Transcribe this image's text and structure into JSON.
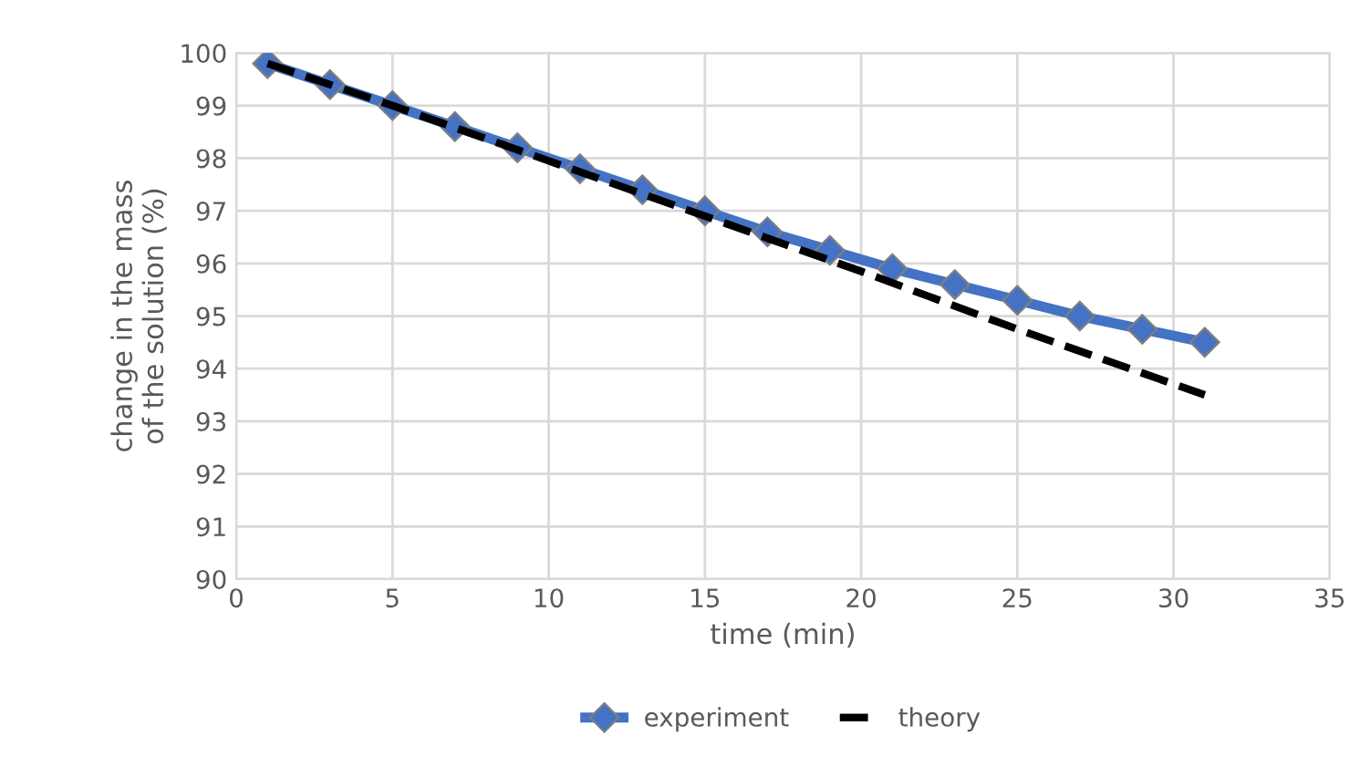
{
  "chart_data": {
    "type": "line",
    "xlabel": "time (min)",
    "ylabel": "change in the mass\nof the solution (%)",
    "xlim": [
      0,
      35
    ],
    "xticks": [
      0,
      5,
      10,
      15,
      20,
      25,
      30,
      35
    ],
    "ylim": [
      90,
      100
    ],
    "yticks": [
      90,
      91,
      92,
      93,
      94,
      95,
      96,
      97,
      98,
      99,
      100
    ],
    "grid": true,
    "legend": "bottom",
    "series": [
      {
        "name": "experiment",
        "color": "#4472c4",
        "marker": "diamond",
        "line_style": "solid",
        "x": [
          1,
          3,
          5,
          7,
          9,
          11,
          13,
          15,
          17,
          19,
          21,
          23,
          25,
          27,
          29,
          31
        ],
        "values": [
          99.8,
          99.4,
          99.0,
          98.6,
          98.2,
          97.8,
          97.4,
          97.0,
          96.6,
          96.25,
          95.9,
          95.6,
          95.3,
          95.0,
          94.75,
          94.5
        ]
      },
      {
        "name": "theory",
        "color": "#000000",
        "marker": "none",
        "line_style": "dashed",
        "x": [
          1,
          5,
          10,
          15,
          20,
          25,
          31
        ],
        "values": [
          99.8,
          99.0,
          97.95,
          96.9,
          95.85,
          94.75,
          93.5
        ]
      }
    ]
  }
}
